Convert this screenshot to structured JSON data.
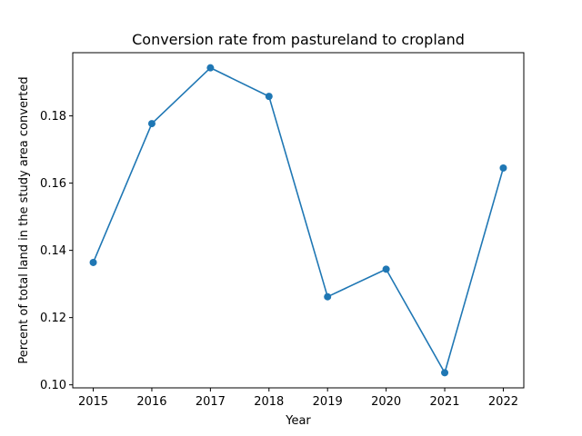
{
  "chart_data": {
    "type": "line",
    "title": "Conversion rate from pastureland to cropland",
    "xlabel": "Year",
    "ylabel": "Percent of total land in the study area converted",
    "x": [
      2015,
      2016,
      2017,
      2018,
      2019,
      2020,
      2021,
      2022
    ],
    "series": [
      {
        "values": [
          0.1364,
          0.1777,
          0.1943,
          0.1858,
          0.1262,
          0.1344,
          0.1036,
          0.1645
        ],
        "color": "#1f77b4",
        "marker": "circle"
      }
    ],
    "x_ticks": [
      "2015",
      "2016",
      "2017",
      "2018",
      "2019",
      "2020",
      "2021",
      "2022"
    ],
    "y_ticks": [
      "0.10",
      "0.12",
      "0.14",
      "0.16",
      "0.18"
    ],
    "xlim": [
      2014.65,
      2022.35
    ],
    "ylim": [
      0.0991,
      0.1988
    ],
    "grid": false,
    "legend": "none"
  }
}
